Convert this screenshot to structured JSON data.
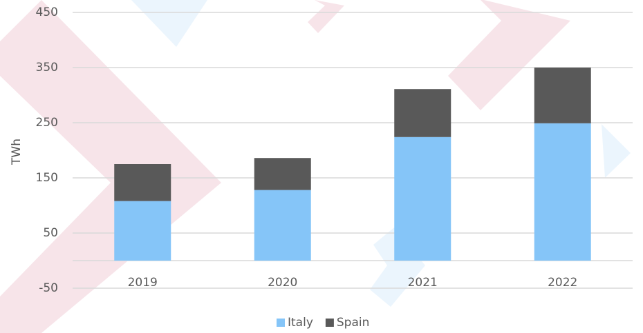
{
  "chart_data": {
    "type": "stacked_bar",
    "y_label": "TWh",
    "categories": [
      "2019",
      "2020",
      "2021",
      "2022"
    ],
    "series": [
      {
        "name": "Italy",
        "color": "#85c5f8",
        "values": [
          108,
          128,
          224,
          249
        ]
      },
      {
        "name": "Spain",
        "color": "#595959",
        "values": [
          67,
          58,
          87,
          101
        ]
      }
    ],
    "ylim": [
      -50,
      450
    ],
    "yticks": [
      -50,
      50,
      150,
      250,
      350,
      450
    ],
    "grid": true,
    "legend": "bottom"
  }
}
